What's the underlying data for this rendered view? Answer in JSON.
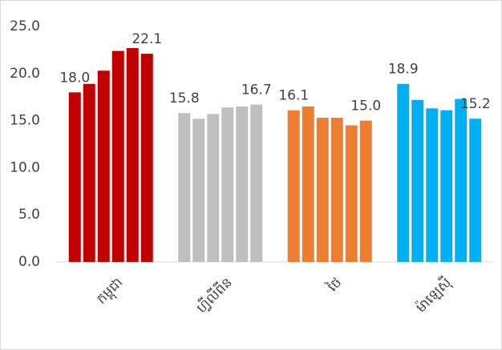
{
  "chart_data": {
    "type": "bar",
    "ylim": [
      0,
      25
    ],
    "yticks": [
      {
        "value": 0,
        "label": "0.0"
      },
      {
        "value": 5,
        "label": "5.0"
      },
      {
        "value": 10,
        "label": "10.0"
      },
      {
        "value": 15,
        "label": "15.0"
      },
      {
        "value": 20,
        "label": "20.0"
      },
      {
        "value": 25,
        "label": "25.0"
      }
    ],
    "grid": false,
    "groups": [
      {
        "category": "កម្ពុជា",
        "color": "#c00000",
        "values": [
          18.0,
          18.9,
          20.3,
          22.4,
          22.7,
          22.1
        ],
        "value_labels": [
          "18.0",
          null,
          null,
          null,
          null,
          "22.1"
        ]
      },
      {
        "category": "ហ្វីលីពីន",
        "color": "#bfbfbf",
        "values": [
          15.8,
          15.2,
          15.7,
          16.4,
          16.5,
          16.7
        ],
        "value_labels": [
          "15.8",
          null,
          null,
          null,
          null,
          "16.7"
        ]
      },
      {
        "category": "ថៃ",
        "color": "#ed7d31",
        "values": [
          16.1,
          16.5,
          15.3,
          15.3,
          14.5,
          15.0
        ],
        "value_labels": [
          "16.1",
          null,
          null,
          null,
          null,
          "15.0"
        ]
      },
      {
        "category": "ម៉ាឡេស៊ី",
        "color": "#00b0f0",
        "values": [
          18.9,
          17.2,
          16.3,
          16.1,
          17.3,
          15.2
        ],
        "value_labels": [
          "18.9",
          null,
          null,
          null,
          null,
          "15.2"
        ]
      }
    ]
  }
}
